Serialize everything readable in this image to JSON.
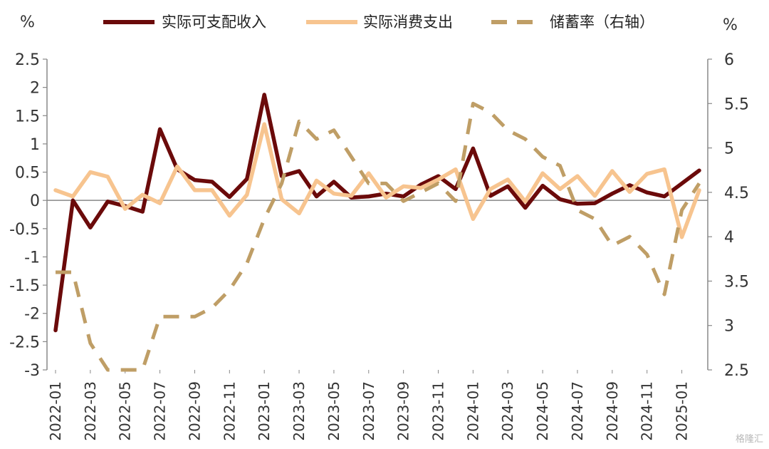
{
  "chart_data": {
    "type": "line",
    "left_unit": "%",
    "right_unit": "%",
    "y_left": {
      "min": -3,
      "max": 2.5,
      "ticks": [
        "2.5",
        "2",
        "1.5",
        "1",
        "0.5",
        "0",
        "-0.5",
        "-1",
        "-1.5",
        "-2",
        "-2.5",
        "-3"
      ]
    },
    "y_right": {
      "min": 2.5,
      "max": 6,
      "ticks": [
        "6",
        "5.5",
        "5",
        "4.5",
        "4",
        "3.5",
        "3",
        "2.5"
      ]
    },
    "x": [
      "2022-01",
      "2022-02",
      "2022-03",
      "2022-04",
      "2022-05",
      "2022-06",
      "2022-07",
      "2022-08",
      "2022-09",
      "2022-10",
      "2022-11",
      "2022-12",
      "2023-01",
      "2023-02",
      "2023-03",
      "2023-04",
      "2023-05",
      "2023-06",
      "2023-07",
      "2023-08",
      "2023-09",
      "2023-10",
      "2023-11",
      "2023-12",
      "2024-01",
      "2024-02",
      "2024-03",
      "2024-04",
      "2024-05",
      "2024-06",
      "2024-07",
      "2024-08",
      "2024-09",
      "2024-10",
      "2024-11",
      "2024-12",
      "2025-01",
      "2025-02"
    ],
    "x_tick_labels": [
      "2022-01",
      "2022-03",
      "2022-05",
      "2022-07",
      "2022-09",
      "2022-11",
      "2023-01",
      "2023-03",
      "2023-05",
      "2023-07",
      "2023-09",
      "2023-11",
      "2024-01",
      "2024-03",
      "2024-05",
      "2024-07",
      "2024-09",
      "2024-11",
      "2025-01"
    ],
    "series": [
      {
        "name": "实际可支配收入",
        "axis": "left",
        "color": "#6b0a0a",
        "style": "solid",
        "values": [
          -2.3,
          0.0,
          -0.48,
          -0.02,
          -0.1,
          -0.2,
          1.26,
          0.55,
          0.36,
          0.33,
          0.06,
          0.38,
          1.87,
          0.43,
          0.52,
          0.07,
          0.33,
          0.05,
          0.07,
          0.12,
          0.07,
          0.28,
          0.43,
          0.2,
          0.92,
          0.08,
          0.25,
          -0.13,
          0.26,
          0.02,
          -0.06,
          -0.05,
          0.12,
          0.27,
          0.14,
          0.07,
          0.3,
          0.53
        ]
      },
      {
        "name": "实际消费支出",
        "axis": "left",
        "color": "#f7c48f",
        "style": "solid",
        "values": [
          0.18,
          0.07,
          0.5,
          0.42,
          -0.15,
          0.1,
          -0.05,
          0.6,
          0.18,
          0.18,
          -0.27,
          0.1,
          1.35,
          0.02,
          -0.23,
          0.35,
          0.12,
          0.08,
          0.48,
          0.05,
          0.25,
          0.22,
          0.37,
          0.55,
          -0.33,
          0.2,
          0.37,
          -0.02,
          0.48,
          0.2,
          0.43,
          0.08,
          0.52,
          0.15,
          0.47,
          0.55,
          -0.65,
          0.18
        ]
      },
      {
        "name": "储蓄率（右轴）",
        "axis": "right",
        "color": "#bf9e66",
        "style": "dashed",
        "values": [
          3.6,
          3.6,
          2.8,
          2.3,
          2.2,
          2.1,
          3.1,
          3.1,
          3.1,
          3.2,
          3.4,
          3.7,
          4.2,
          4.6,
          5.3,
          5.1,
          5.2,
          4.9,
          4.6,
          4.6,
          4.4,
          4.5,
          4.6,
          4.4,
          5.5,
          5.4,
          5.2,
          5.1,
          4.9,
          4.8,
          4.3,
          4.2,
          3.9,
          4.0,
          3.8,
          3.35,
          4.3,
          4.6
        ]
      }
    ],
    "legend_position": "top",
    "zero_line": true,
    "grid": false
  },
  "watermark": "格隆汇"
}
